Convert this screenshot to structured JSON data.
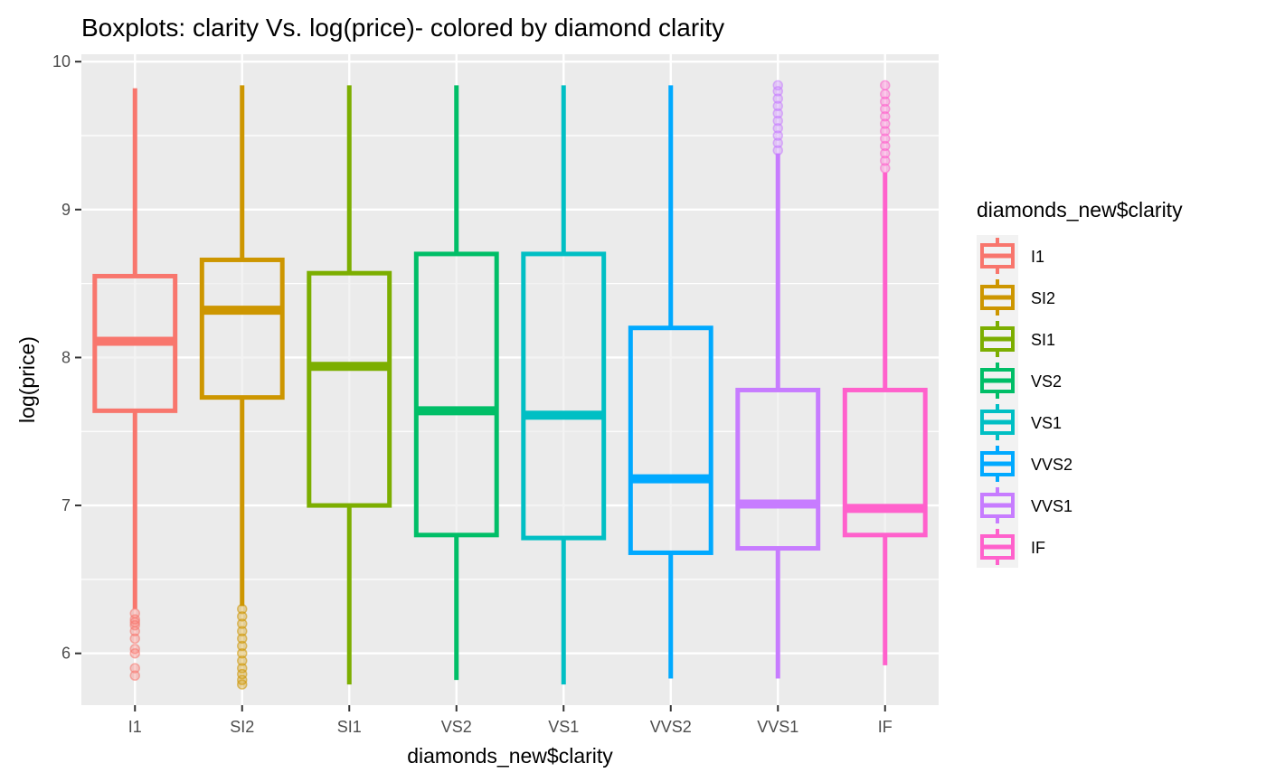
{
  "chart_data": {
    "type": "boxplot",
    "title": "Boxplots: clarity Vs. log(price)- colored by diamond clarity",
    "xlabel": "diamonds_new$clarity",
    "ylabel": "log(price)",
    "ylim": [
      5.65,
      10.05
    ],
    "y_ticks": [
      "6",
      "7",
      "8",
      "9",
      "10"
    ],
    "grid": true,
    "legend": {
      "title": "diamonds_new$clarity",
      "position": "right"
    },
    "categories": [
      "I1",
      "SI2",
      "SI1",
      "VS2",
      "VS1",
      "VVS2",
      "VVS1",
      "IF"
    ],
    "series": [
      {
        "name": "I1",
        "color": "#F8766D",
        "whisker_low": 6.3,
        "q1": 7.64,
        "median": 8.11,
        "q3": 8.55,
        "whisker_high": 9.82,
        "outliers": [
          5.85,
          5.9,
          6.0,
          6.03,
          6.1,
          6.15,
          6.19,
          6.21,
          6.23,
          6.27
        ]
      },
      {
        "name": "SI2",
        "color": "#CD9600",
        "whisker_low": 6.32,
        "q1": 7.73,
        "median": 8.32,
        "q3": 8.66,
        "whisker_high": 9.84,
        "outliers": [
          5.79,
          5.82,
          5.86,
          5.9,
          5.95,
          6.0,
          6.05,
          6.1,
          6.15,
          6.2,
          6.25,
          6.3
        ]
      },
      {
        "name": "SI1",
        "color": "#7CAE00",
        "whisker_low": 5.79,
        "q1": 7.0,
        "median": 7.94,
        "q3": 8.57,
        "whisker_high": 9.84,
        "outliers": []
      },
      {
        "name": "VS2",
        "color": "#00BE67",
        "whisker_low": 5.82,
        "q1": 6.8,
        "median": 7.64,
        "q3": 8.7,
        "whisker_high": 9.84,
        "outliers": []
      },
      {
        "name": "VS1",
        "color": "#00BFC4",
        "whisker_low": 5.79,
        "q1": 6.78,
        "median": 7.61,
        "q3": 8.7,
        "whisker_high": 9.84,
        "outliers": []
      },
      {
        "name": "VVS2",
        "color": "#00A9FF",
        "whisker_low": 5.83,
        "q1": 6.68,
        "median": 7.18,
        "q3": 8.2,
        "whisker_high": 9.84,
        "outliers": []
      },
      {
        "name": "VVS1",
        "color": "#C77CFF",
        "whisker_low": 5.83,
        "q1": 6.71,
        "median": 7.01,
        "q3": 7.78,
        "whisker_high": 9.38,
        "outliers": [
          9.4,
          9.45,
          9.5,
          9.55,
          9.6,
          9.65,
          9.7,
          9.75,
          9.8,
          9.84
        ]
      },
      {
        "name": "IF",
        "color": "#FF61CC",
        "whisker_low": 5.92,
        "q1": 6.8,
        "median": 6.98,
        "q3": 7.78,
        "whisker_high": 9.25,
        "outliers": [
          9.28,
          9.33,
          9.38,
          9.43,
          9.48,
          9.53,
          9.58,
          9.63,
          9.68,
          9.73,
          9.78,
          9.84
        ]
      }
    ]
  }
}
